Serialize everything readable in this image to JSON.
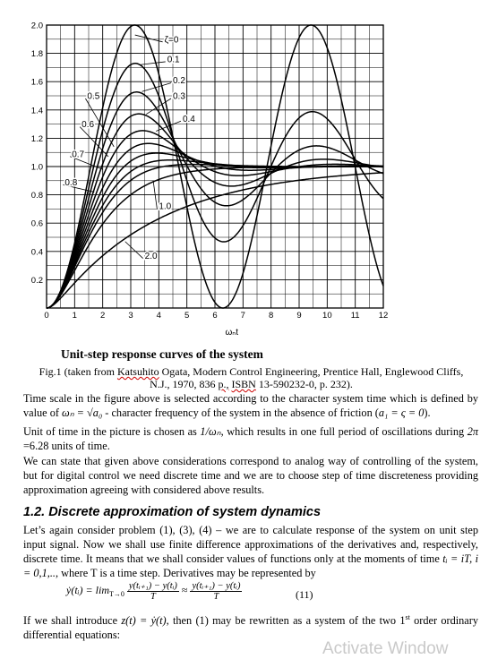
{
  "chart_data": {
    "type": "line",
    "title": "",
    "xlabel": "ωₙt",
    "ylabel": "",
    "xlim": [
      0,
      12
    ],
    "ylim": [
      0,
      2.0
    ],
    "x_ticks": [
      "0",
      "1",
      "2",
      "3",
      "4",
      "5",
      "6",
      "7",
      "8",
      "9",
      "10",
      "11",
      "12"
    ],
    "y_ticks": [
      "0.2",
      "0.4",
      "0.6",
      "0.8",
      "1.0",
      "1.2",
      "1.4",
      "1.6",
      "1.8",
      "2.0"
    ],
    "grid": true,
    "zeta_values": [
      0,
      0.1,
      0.2,
      0.3,
      0.4,
      0.5,
      0.6,
      0.7,
      0.8,
      1.0,
      2.0
    ],
    "series": [
      {
        "name": "ζ=0",
        "zeta": 0
      },
      {
        "name": "0.1",
        "zeta": 0.1
      },
      {
        "name": "0.2",
        "zeta": 0.2
      },
      {
        "name": "0.3",
        "zeta": 0.3
      },
      {
        "name": "0.4",
        "zeta": 0.4
      },
      {
        "name": "0.5",
        "zeta": 0.5
      },
      {
        "name": "0.6",
        "zeta": 0.6
      },
      {
        "name": "0.7",
        "zeta": 0.7
      },
      {
        "name": "0.8",
        "zeta": 0.8
      },
      {
        "name": "1.0",
        "zeta": 1.0
      },
      {
        "name": "2.0",
        "zeta": 2.0
      }
    ]
  },
  "caption": {
    "title": "Unit-step response curves of the system",
    "fig_line1_pre": "Fig.1 (taken from ",
    "fig_author": "Katsuhito",
    "fig_line1_post": " Ogata, Modern Control Engineering, Prentice Hall, Englewood Cliffs,",
    "fig_line2_pre": "N.J., 1970, 836 ",
    "fig_p": "p.,",
    "fig_isbn": "ISBN",
    "fig_line2_post": " 13-590232-0, p. 232)."
  },
  "body": {
    "p1_a": "Time scale in the figure above is selected according to the character system time which is defined by value of ",
    "p1_sym": "ωₙ = √a₀",
    "p1_b": " - character frequency of the system in the absence of friction (",
    "p1_cond": "a₁ = ς = 0",
    "p1_c": ").",
    "p2_a": "Unit of time in the picture is chosen as ",
    "p2_sym": "1/ωₙ",
    "p2_b": ", which results in one full period of oscillations during ",
    "p2_sym2": "2π",
    "p2_c": " =6.28 units of time.",
    "p3": "We can state that given above considerations correspond to analog way of controlling of the system, but for digital control we need discrete time and we are to choose step of time discreteness providing approximation agreeing with considered above results.",
    "heading": "1.2. Discrete approximation of system dynamics",
    "p4_a": "Let’s again consider problem (1), (3), (4) – we are to calculate response of the system on unit step input signal. Now we shall use finite difference approximations of the derivatives and, respectively, discrete time. It means that we shall consider values of functions only at the moments of time ",
    "p4_sym": "tᵢ = iT, i = 0,1,..",
    "p4_b": ", where T is a time step. Derivatives may be represented by",
    "eq_lhs": "ẏ(tᵢ) = lim",
    "eq_lim_sub": "T→0",
    "eq_num": "y(tᵢ₊₁) − y(tᵢ)",
    "eq_den": "T",
    "eq_approx": "≈",
    "eq_number": "(11)",
    "p5_a": "If we shall introduce ",
    "p5_sym": "z(t) = ẏ(t)",
    "p5_b": ", then (1) may be rewritten as a system of the two 1",
    "p5_sup": "st",
    "p5_c": " order ordinary differential equations:"
  },
  "watermark": "Activate Window"
}
